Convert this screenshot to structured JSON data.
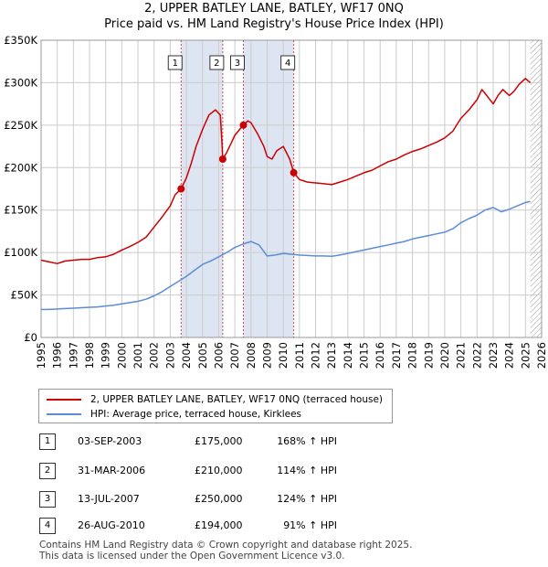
{
  "title": "2, UPPER BATLEY LANE, BATLEY, WF17 0NQ",
  "subtitle": "Price paid vs. HM Land Registry's House Price Index (HPI)",
  "colors": {
    "price": "#cc0000",
    "hpi": "#5b8dd6",
    "grid": "#cccccc",
    "band": "#dde4f2",
    "hatch": "#999999"
  },
  "chart_data": {
    "type": "line",
    "title": "2, UPPER BATLEY LANE, BATLEY, WF17 0NQ",
    "xlabel": "",
    "ylabel": "",
    "xlim": [
      1995,
      2026
    ],
    "ylim": [
      0,
      350000
    ],
    "grid": true,
    "y_ticks": [
      0,
      50000,
      100000,
      150000,
      200000,
      250000,
      300000,
      350000
    ],
    "y_tick_labels": [
      "£0",
      "£50K",
      "£100K",
      "£150K",
      "£200K",
      "£250K",
      "£300K",
      "£350K"
    ],
    "x_ticks": [
      1995,
      1996,
      1997,
      1998,
      1999,
      2000,
      2001,
      2002,
      2003,
      2004,
      2005,
      2006,
      2007,
      2008,
      2009,
      2010,
      2011,
      2012,
      2013,
      2014,
      2015,
      2016,
      2017,
      2018,
      2019,
      2020,
      2021,
      2022,
      2023,
      2024,
      2025,
      2026
    ],
    "x_tick_labels": [
      "1995",
      "1996",
      "1997",
      "1998",
      "1999",
      "2000",
      "2001",
      "2002",
      "2003",
      "2004",
      "2005",
      "2006",
      "2007",
      "2008",
      "2009",
      "2010",
      "2011",
      "2012",
      "2013",
      "2014",
      "2015",
      "2016",
      "2017",
      "2018",
      "2019",
      "2020",
      "2021",
      "2022",
      "2023",
      "2024",
      "2025",
      "2026"
    ],
    "shaded_ranges": [
      [
        2003.67,
        2006.25
      ],
      [
        2007.53,
        2010.65
      ]
    ],
    "hatched_from": 2025.3,
    "series": [
      {
        "name": "2, UPPER BATLEY LANE, BATLEY, WF17 0NQ (terraced house)",
        "color": "#cc0000",
        "x": [
          1995,
          1995.5,
          1996,
          1996.5,
          1997,
          1997.5,
          1998,
          1998.5,
          1999,
          1999.5,
          2000,
          2000.5,
          2001,
          2001.5,
          2002,
          2002.5,
          2003,
          2003.3,
          2003.67,
          2004,
          2004.3,
          2004.6,
          2005,
          2005.4,
          2005.8,
          2006.1,
          2006.2,
          2006.25,
          2006.5,
          2006.8,
          2007,
          2007.3,
          2007.53,
          2007.8,
          2008,
          2008.4,
          2008.8,
          2009,
          2009.3,
          2009.6,
          2010,
          2010.4,
          2010.65,
          2011,
          2011.5,
          2012,
          2012.5,
          2013,
          2013.5,
          2014,
          2014.5,
          2015,
          2015.5,
          2016,
          2016.5,
          2017,
          2017.5,
          2018,
          2018.5,
          2019,
          2019.5,
          2020,
          2020.5,
          2021,
          2021.5,
          2022,
          2022.3,
          2022.6,
          2023,
          2023.3,
          2023.6,
          2024,
          2024.3,
          2024.6,
          2025,
          2025.3
        ],
        "values": [
          91000,
          89000,
          87000,
          90000,
          91000,
          92000,
          92000,
          94000,
          95000,
          98000,
          103000,
          107000,
          112000,
          118000,
          130000,
          142000,
          155000,
          168000,
          175000,
          188000,
          205000,
          225000,
          245000,
          262000,
          268000,
          262000,
          230000,
          210000,
          218000,
          230000,
          238000,
          245000,
          250000,
          255000,
          253000,
          240000,
          225000,
          213000,
          210000,
          220000,
          225000,
          210000,
          194000,
          186000,
          183000,
          182000,
          181000,
          180000,
          183000,
          186000,
          190000,
          194000,
          197000,
          202000,
          207000,
          210000,
          215000,
          219000,
          222000,
          226000,
          230000,
          235000,
          243000,
          258000,
          268000,
          280000,
          292000,
          285000,
          275000,
          285000,
          292000,
          285000,
          290000,
          298000,
          305000,
          300000
        ]
      },
      {
        "name": "HPI: Average price, terraced house, Kirklees",
        "color": "#5b8dd6",
        "x": [
          1995,
          1995.5,
          1996,
          1996.5,
          1997,
          1997.5,
          1998,
          1998.5,
          1999,
          1999.5,
          2000,
          2000.5,
          2001,
          2001.5,
          2002,
          2002.5,
          2003,
          2003.5,
          2004,
          2004.5,
          2005,
          2005.5,
          2006,
          2006.5,
          2007,
          2007.5,
          2008,
          2008.5,
          2009,
          2009.5,
          2010,
          2010.5,
          2011,
          2011.5,
          2012,
          2012.5,
          2013,
          2013.5,
          2014,
          2014.5,
          2015,
          2015.5,
          2016,
          2016.5,
          2017,
          2017.5,
          2018,
          2018.5,
          2019,
          2019.5,
          2020,
          2020.5,
          2021,
          2021.5,
          2022,
          2022.5,
          2023,
          2023.5,
          2024,
          2024.5,
          2025,
          2025.3
        ],
        "values": [
          33000,
          33000,
          33500,
          34000,
          34500,
          35000,
          35500,
          36000,
          37000,
          38000,
          39500,
          41000,
          42500,
          45000,
          49000,
          54000,
          60000,
          66000,
          72000,
          79000,
          86000,
          90000,
          95000,
          100000,
          106000,
          110000,
          113000,
          109000,
          96000,
          97000,
          99000,
          98000,
          97000,
          96500,
          96000,
          96000,
          95500,
          97000,
          99000,
          101000,
          103000,
          105000,
          107000,
          109000,
          111000,
          113000,
          116000,
          118000,
          120000,
          122000,
          124000,
          128000,
          135000,
          140000,
          144000,
          150000,
          153000,
          148000,
          151000,
          155000,
          159000,
          160000
        ]
      }
    ],
    "sales": [
      {
        "label": "1",
        "date": "03-SEP-2003",
        "x": 2003.67,
        "price": 175000,
        "price_label": "£175,000",
        "hpi_change": "168% ↑ HPI"
      },
      {
        "label": "2",
        "date": "31-MAR-2006",
        "x": 2006.25,
        "price": 210000,
        "price_label": "£210,000",
        "hpi_change": "114% ↑ HPI"
      },
      {
        "label": "3",
        "date": "13-JUL-2007",
        "x": 2007.53,
        "price": 250000,
        "price_label": "£250,000",
        "hpi_change": "124% ↑ HPI"
      },
      {
        "label": "4",
        "date": "26-AUG-2010",
        "x": 2010.65,
        "price": 194000,
        "price_label": "£194,000",
        "hpi_change": "91% ↑ HPI"
      }
    ],
    "legend_position": "below"
  },
  "legend": {
    "price_label": "2, UPPER BATLEY LANE, BATLEY, WF17 0NQ (terraced house)",
    "hpi_label": "HPI: Average price, terraced house, Kirklees"
  },
  "table": [
    {
      "num": "1",
      "date": "03-SEP-2003",
      "price": "£175,000",
      "hpi": "168% ↑ HPI"
    },
    {
      "num": "2",
      "date": "31-MAR-2006",
      "price": "£210,000",
      "hpi": "114% ↑ HPI"
    },
    {
      "num": "3",
      "date": "13-JUL-2007",
      "price": "£250,000",
      "hpi": "124% ↑ HPI"
    },
    {
      "num": "4",
      "date": "26-AUG-2010",
      "price": "£194,000",
      "hpi": "91% ↑ HPI"
    }
  ],
  "footer": {
    "line1": "Contains HM Land Registry data © Crown copyright and database right 2025.",
    "line2": "This data is licensed under the Open Government Licence v3.0."
  }
}
